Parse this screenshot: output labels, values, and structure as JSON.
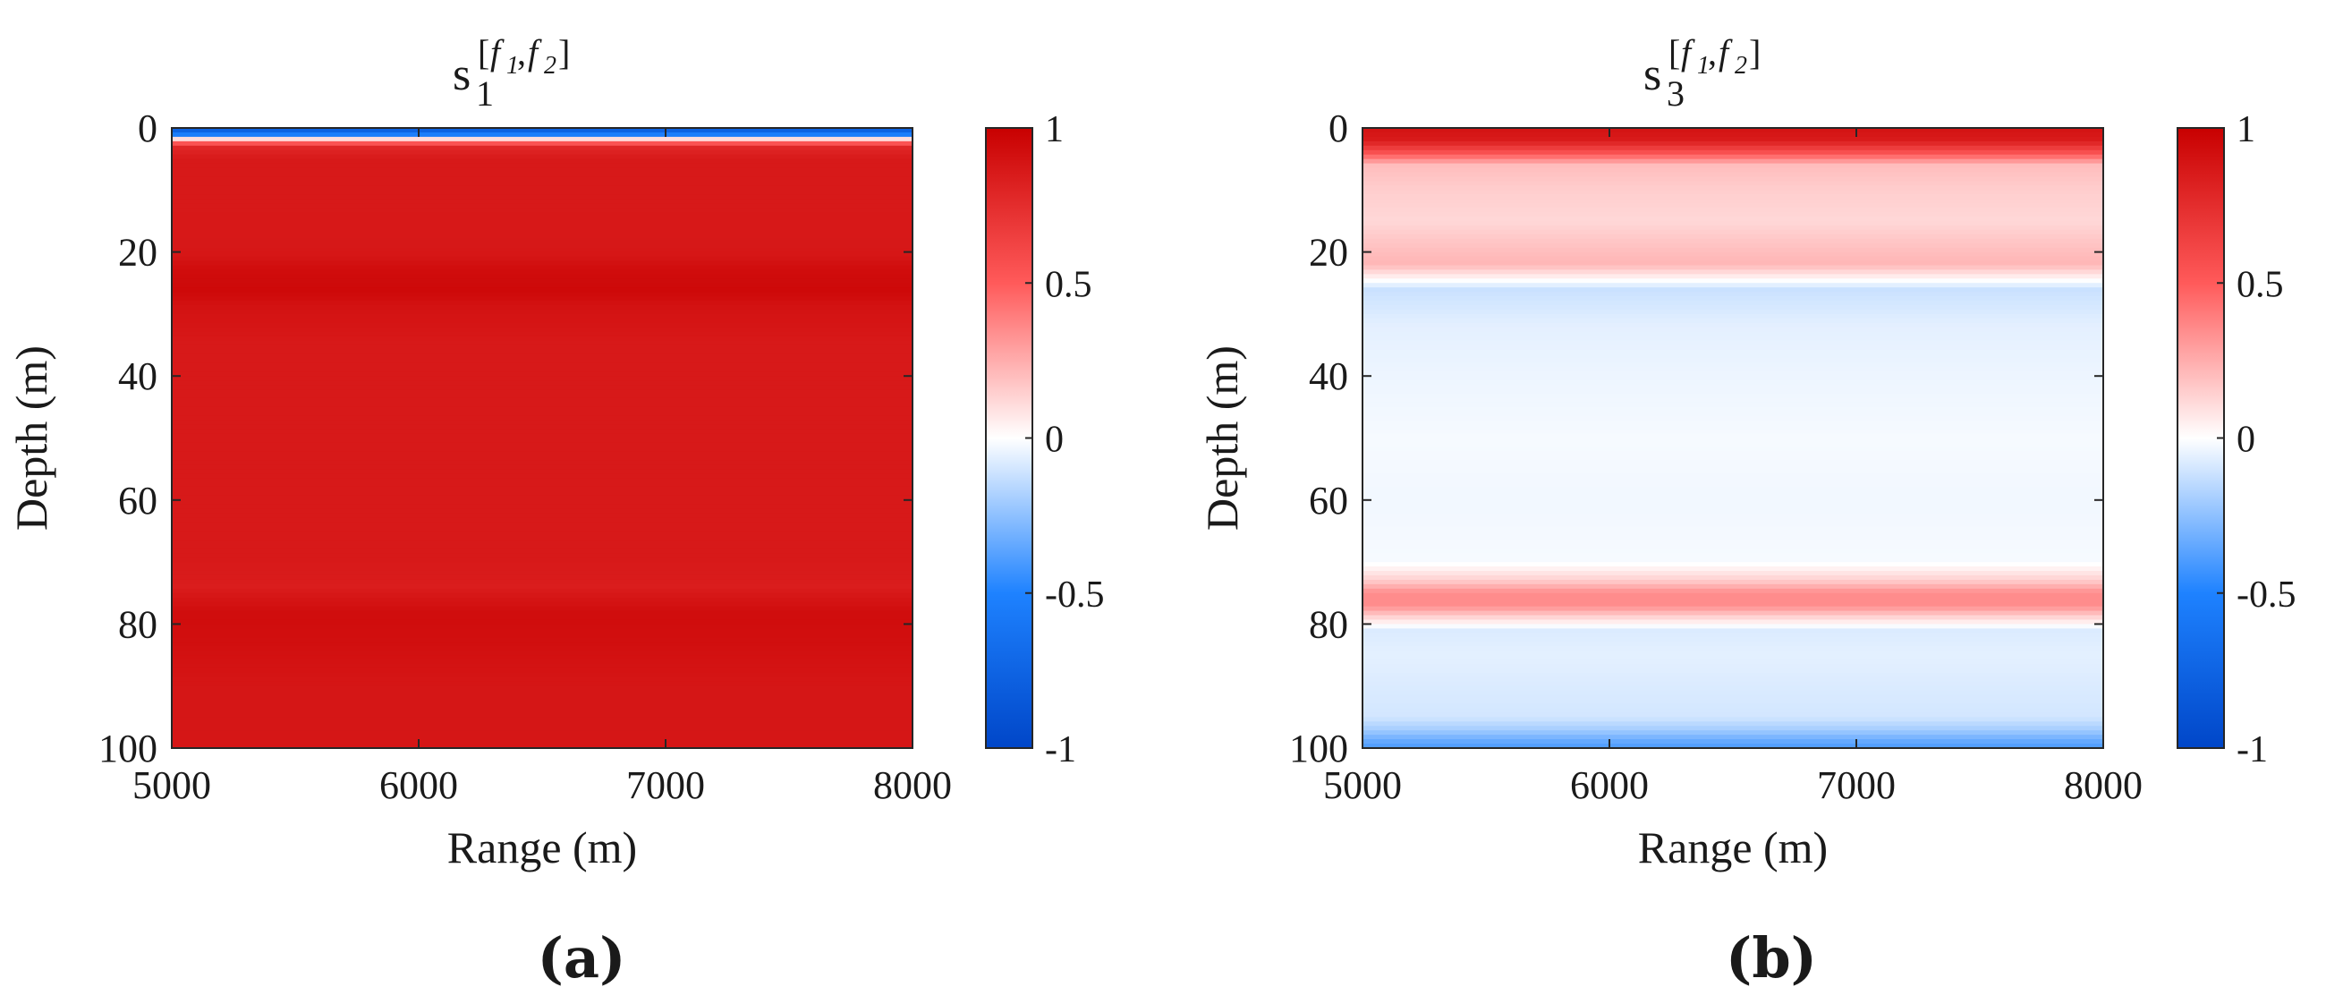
{
  "chart_data": [
    {
      "type": "heatmap",
      "panel_label": "(a)",
      "title": {
        "base": "s",
        "sub": "1",
        "sup_f1_base": "f",
        "sup_f1_sub": "1",
        "sup_f2_base": "f",
        "sup_f2_sub": "2"
      },
      "xlabel": "Range (m)",
      "ylabel": "Depth (m)",
      "xlim": [
        5000,
        8000
      ],
      "ylim": [
        0,
        100
      ],
      "y_reversed": true,
      "xticks": [
        "5000",
        "6000",
        "7000",
        "8000"
      ],
      "yticks": [
        "0",
        "20",
        "40",
        "60",
        "80",
        "100"
      ],
      "colorbar": {
        "min": -1,
        "max": 1,
        "ticks": [
          "1",
          "0.5",
          "0",
          "-0.5",
          "-1"
        ],
        "colormap": "blue-white-red"
      },
      "depth_profile": {
        "depth": [
          0,
          1,
          2,
          3,
          5,
          10,
          20,
          23,
          26,
          29,
          35,
          50,
          70,
          74,
          78,
          82,
          90,
          100
        ],
        "value": [
          -0.85,
          -0.6,
          0.3,
          0.78,
          0.86,
          0.86,
          0.87,
          0.93,
          0.95,
          0.9,
          0.86,
          0.86,
          0.86,
          0.84,
          0.93,
          0.92,
          0.88,
          0.88
        ]
      }
    },
    {
      "type": "heatmap",
      "panel_label": "(b)",
      "title": {
        "base": "s",
        "sub": "3",
        "sup_f1_base": "f",
        "sup_f1_sub": "1",
        "sup_f2_base": "f",
        "sup_f2_sub": "2"
      },
      "xlabel": "Range (m)",
      "ylabel": "Depth (m)",
      "xlim": [
        5000,
        8000
      ],
      "ylim": [
        0,
        100
      ],
      "y_reversed": true,
      "xticks": [
        "5000",
        "6000",
        "7000",
        "8000"
      ],
      "yticks": [
        "0",
        "20",
        "40",
        "60",
        "80",
        "100"
      ],
      "colorbar": {
        "min": -1,
        "max": 1,
        "ticks": [
          "1",
          "0.5",
          "0",
          "-0.5",
          "-1"
        ],
        "colormap": "blue-white-red"
      },
      "depth_profile": {
        "depth": [
          0,
          2,
          4,
          6,
          10,
          15,
          20,
          22,
          24,
          26,
          28,
          32,
          40,
          50,
          60,
          70,
          73,
          75,
          77,
          79,
          81,
          85,
          90,
          95,
          97,
          99,
          100
        ],
        "value": [
          0.9,
          0.85,
          0.55,
          0.2,
          0.15,
          0.12,
          0.2,
          0.22,
          0.05,
          -0.12,
          -0.1,
          -0.06,
          -0.04,
          -0.02,
          -0.03,
          -0.02,
          0.15,
          0.35,
          0.35,
          0.12,
          -0.08,
          -0.06,
          -0.08,
          -0.1,
          -0.2,
          -0.35,
          -0.4
        ]
      }
    }
  ]
}
